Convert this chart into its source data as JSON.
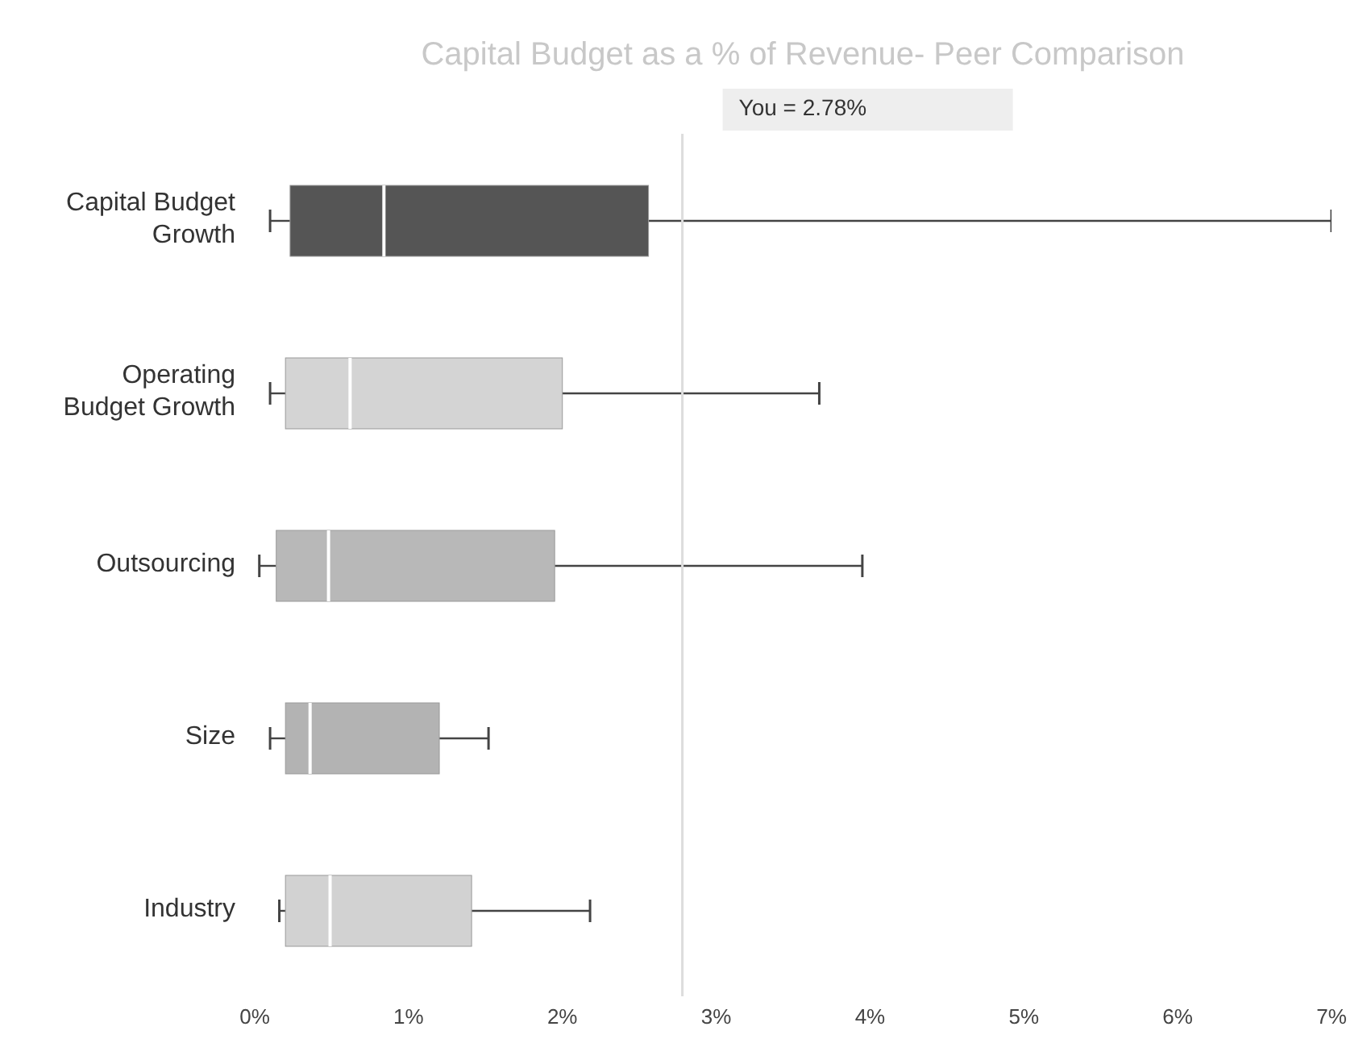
{
  "chart_data": {
    "type": "box",
    "title": "Capital Budget as a % of Revenue- Peer Comparison",
    "categories": [
      "Capital Budget Growth",
      "Operating Budget Growth",
      "Outsourcing",
      "Size",
      "Industry"
    ],
    "boxes": [
      {
        "low": 0.1,
        "q1": 0.23,
        "median": 0.84,
        "q3": 2.56,
        "high": 7.0
      },
      {
        "low": 0.1,
        "q1": 0.2,
        "median": 0.62,
        "q3": 2.0,
        "high": 3.67
      },
      {
        "low": 0.03,
        "q1": 0.14,
        "median": 0.48,
        "q3": 1.95,
        "high": 3.95
      },
      {
        "low": 0.1,
        "q1": 0.2,
        "median": 0.36,
        "q3": 1.2,
        "high": 1.52
      },
      {
        "low": 0.16,
        "q1": 0.2,
        "median": 0.49,
        "q3": 1.41,
        "high": 2.18
      }
    ],
    "colors": [
      "#555555",
      "#d4d4d4",
      "#b8b8b8",
      "#b3b3b3",
      "#d2d2d2"
    ],
    "orientation": "horizontal",
    "xlim": [
      0,
      7
    ],
    "xticks": [
      {
        "value": 0,
        "label": "0%"
      },
      {
        "value": 1,
        "label": "1%"
      },
      {
        "value": 2,
        "label": "2%"
      },
      {
        "value": 3,
        "label": "3%"
      },
      {
        "value": 4,
        "label": "4%"
      },
      {
        "value": 5,
        "label": "5%"
      },
      {
        "value": 6,
        "label": "6%"
      },
      {
        "value": 7,
        "label": "7%"
      }
    ],
    "ref_lines": [
      {
        "axis": "x",
        "value": 2.78,
        "label": "You = 2.78%",
        "color": "#dddddd"
      }
    ]
  }
}
